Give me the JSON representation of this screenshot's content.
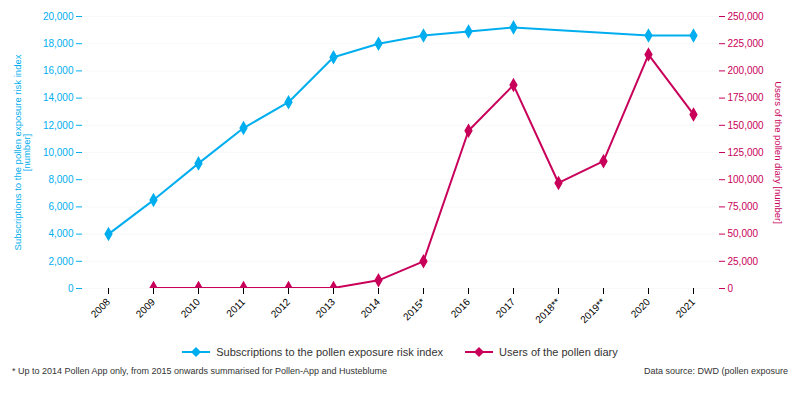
{
  "chart_data": {
    "type": "line",
    "categories": [
      "2008",
      "2009",
      "2010",
      "2011",
      "2012",
      "2013",
      "2014",
      "2015*",
      "2016",
      "2017",
      "2018**",
      "2019**",
      "2020",
      "2021"
    ],
    "series": [
      {
        "name": "Subscriptions to the pollen exposure risk index",
        "color": "#00AEEF",
        "marker": "diamond",
        "values": [
          4000,
          6500,
          9200,
          11800,
          13700,
          17000,
          18000,
          18600,
          18900,
          19200,
          null,
          null,
          18600,
          18600
        ]
      },
      {
        "name": "Users of the pollen diary",
        "color": "#C8005A",
        "marker": "diamond",
        "axis": "y2",
        "values": [
          null,
          500,
          500,
          500,
          500,
          500,
          7500,
          25000,
          145000,
          187000,
          97000,
          117000,
          215000,
          160000
        ]
      }
    ],
    "ylabel": "Subscriptions to the pollen exposure risk index\n[number]",
    "y2label": "Users of the pollen diary [number]",
    "ylim": [
      0,
      20000
    ],
    "yticks": [
      0,
      {
        "value": 2000,
        "label": "2,000"
      },
      {
        "value": 4000,
        "label": "4,000"
      },
      {
        "value": 6000,
        "label": "6,000"
      },
      {
        "value": 8000,
        "label": "8,000"
      },
      {
        "value": 10000,
        "label": "10,000"
      },
      {
        "value": 12000,
        "label": "12,000"
      },
      {
        "value": 14000,
        "label": "14,000"
      },
      {
        "value": 16000,
        "label": "16,000"
      },
      {
        "value": 18000,
        "label": "18,000"
      },
      {
        "value": 20000,
        "label": "20,000"
      }
    ],
    "y2lim": [
      0,
      250000
    ],
    "y2ticks": [
      0,
      {
        "value": 25000,
        "label": "25,000"
      },
      {
        "value": 50000,
        "label": "50,000"
      },
      {
        "value": 75000,
        "label": "75,000"
      },
      {
        "value": 100000,
        "label": "100,000"
      },
      {
        "value": 125000,
        "label": "125,000"
      },
      {
        "value": 150000,
        "label": "150,000"
      },
      {
        "value": 175000,
        "label": "175,000"
      },
      {
        "value": 200000,
        "label": "200,000"
      },
      {
        "value": 225000,
        "label": "225,000"
      },
      {
        "value": 250000,
        "label": "250,000"
      }
    ],
    "grid": true,
    "legend": "bottom",
    "annotations": [
      "* Up to 2014 Pollen App only, from 2015 onwards summarised for Pollen-App and Husteblume",
      "Data source: DWD (pollen exposure"
    ]
  }
}
